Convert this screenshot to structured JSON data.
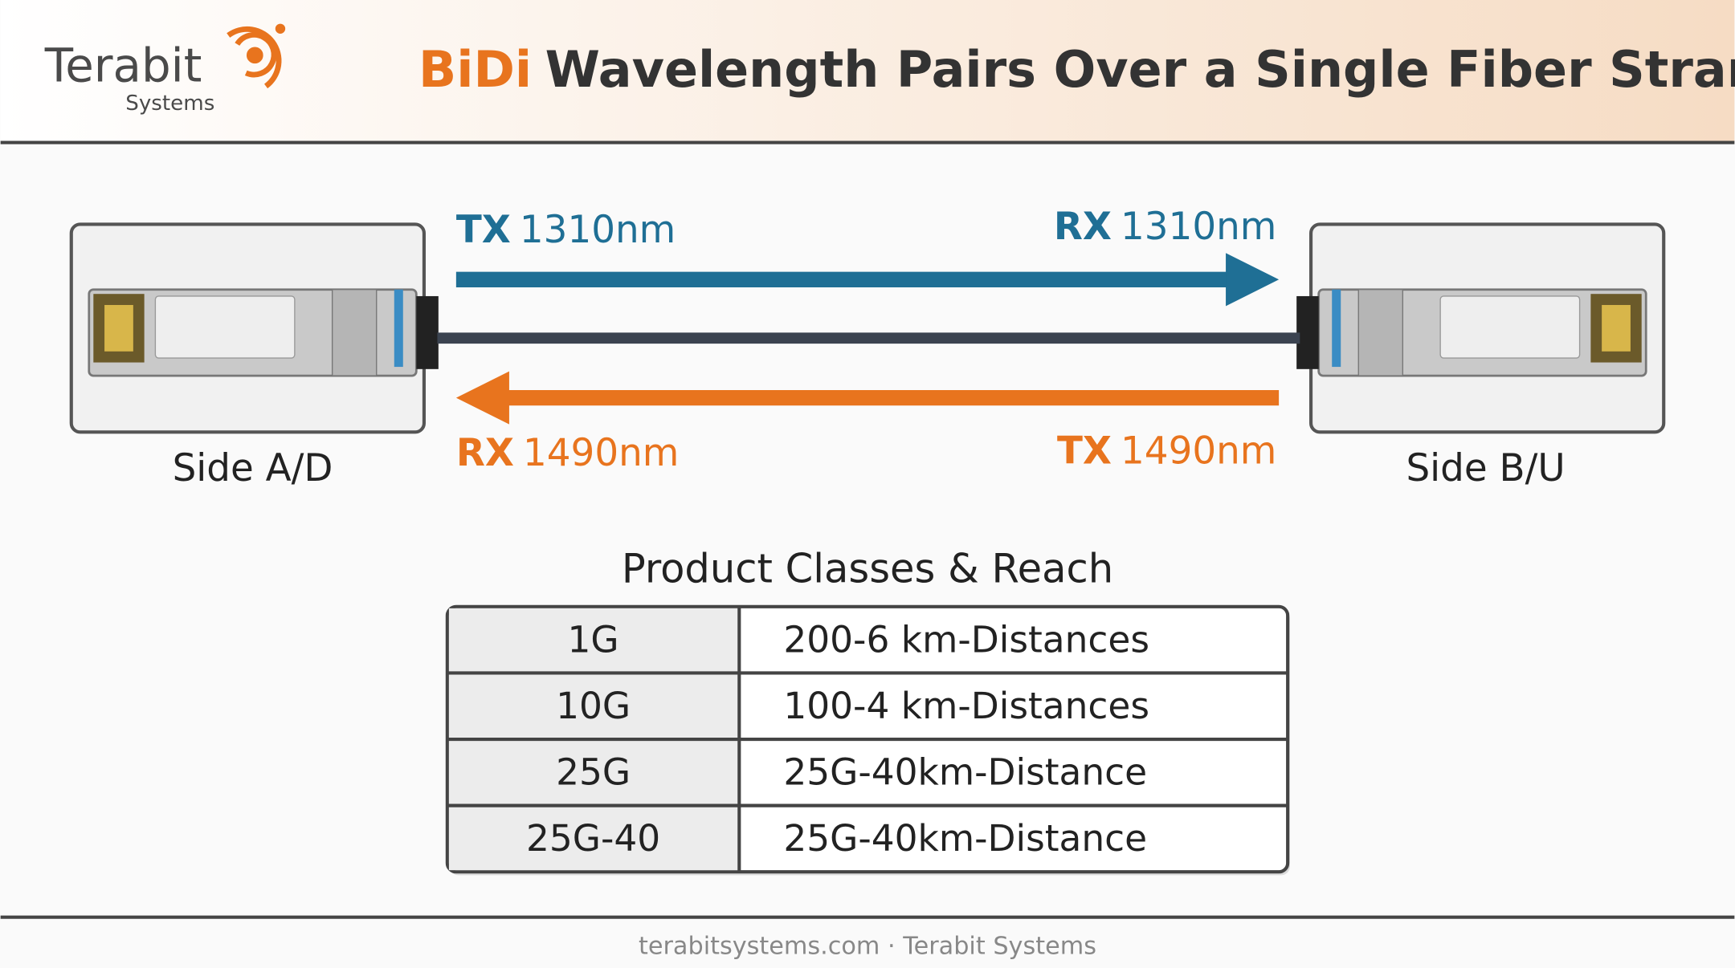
{
  "header": {
    "logo": {
      "name": "Terabit",
      "tagline": "Systems"
    },
    "title": {
      "highlight": "BiDi",
      "rest": "Wavelength Pairs Over a Single Fiber Strand"
    }
  },
  "diagram": {
    "side_a": "Side A/D",
    "side_b": "Side B/U",
    "labels": [
      {
        "role": "TX",
        "wavelength": "1310nm"
      },
      {
        "role": "RX",
        "wavelength": "1310nm"
      },
      {
        "role": "RX",
        "wavelength": "1490nm"
      },
      {
        "role": "TX",
        "wavelength": "1490nm"
      }
    ]
  },
  "table": {
    "title": "Product Classes & Reach",
    "rows": [
      [
        "1G",
        "200-6 km-Distances"
      ],
      [
        "10G",
        "100-4 km-Distances"
      ],
      [
        "25G",
        "25G-40km-Distance"
      ],
      [
        "25G-40",
        "25G-40km-Distance"
      ]
    ]
  },
  "footer": "terabitsystems.com · Terabit Systems"
}
